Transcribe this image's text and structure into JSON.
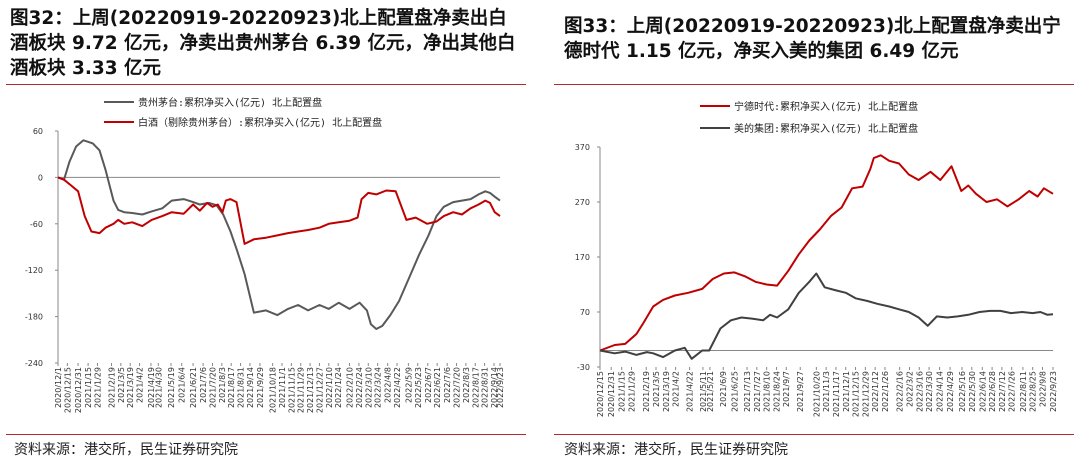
{
  "charts": [
    {
      "title": "图32：上周(20220919-20220923)北上配置盘净卖出白酒板块 9.72 亿元，净卖出贵州茅台 6.39 亿元，净出其他白酒板块 3.33 亿元",
      "source": "资料来源：港交所，民生证券研究院",
      "colors": {
        "series1": "#595959",
        "series2": "#c00000",
        "rule": "#b5292d"
      },
      "chart_data": {
        "type": "line",
        "ylim": [
          -240,
          60
        ],
        "yticks": [
          "60",
          "0",
          "-60",
          "-120",
          "-180",
          "-240"
        ],
        "xlim": [
          "2020-12-01",
          "2022-09-23"
        ],
        "xticks": [
          "2020/12/1",
          "2020/12/15",
          "2020/12/31",
          "2021/1/15",
          "2021/1/29",
          "2021/2/19",
          "2021/3/5",
          "2021/3/19",
          "2021/4/2",
          "2021/4/19",
          "2021/4/30",
          "2021/5/19",
          "2021/6/4",
          "2021/6/21",
          "2021/7/6",
          "2021/7/20",
          "2021/8/3",
          "2021/8/17",
          "2021/8/31",
          "2021/9/14",
          "2021/9/29",
          "2021/10/18",
          "2021/11/1",
          "2021/11/15",
          "2021/11/29",
          "2021/12/13",
          "2021/12/27",
          "2022/1/10",
          "2022/1/24",
          "2022/2/10",
          "2022/2/24",
          "2022/3/10",
          "2022/3/24",
          "2022/4/8",
          "2022/4/22",
          "2022/5/9",
          "2022/5/23",
          "2022/6/7",
          "2022/6/21",
          "2022/7/6",
          "2022/7/20",
          "2022/8/3",
          "2022/8/17",
          "2022/8/31",
          "2022/9/14",
          "2022/9/23"
        ],
        "series": [
          {
            "name": "贵州茅台:累积净买入(亿元) 北上配置盘",
            "x": [
              "2020-12-01",
              "2020-12-10",
              "2020-12-18",
              "2020-12-28",
              "2021-01-08",
              "2021-01-15",
              "2021-01-22",
              "2021-02-01",
              "2021-02-10",
              "2021-02-22",
              "2021-03-01",
              "2021-03-10",
              "2021-03-22",
              "2021-04-06",
              "2021-04-20",
              "2021-05-06",
              "2021-05-20",
              "2021-06-07",
              "2021-06-21",
              "2021-07-01",
              "2021-07-15",
              "2021-07-26",
              "2021-08-05",
              "2021-08-16",
              "2021-08-26",
              "2021-09-06",
              "2021-09-20",
              "2021-10-08",
              "2021-10-25",
              "2021-11-10",
              "2021-11-25",
              "2021-12-10",
              "2021-12-27",
              "2022-01-10",
              "2022-01-25",
              "2022-02-10",
              "2022-02-25",
              "2022-03-08",
              "2022-03-14",
              "2022-03-22",
              "2022-03-31",
              "2022-04-12",
              "2022-04-25",
              "2022-05-10",
              "2022-05-25",
              "2022-06-08",
              "2022-06-20",
              "2022-07-01",
              "2022-07-15",
              "2022-07-28",
              "2022-08-10",
              "2022-08-22",
              "2022-09-01",
              "2022-09-08",
              "2022-09-15",
              "2022-09-23"
            ],
            "values": [
              0,
              -3,
              20,
              40,
              48,
              46,
              44,
              35,
              10,
              -30,
              -42,
              -45,
              -46,
              -48,
              -44,
              -40,
              -30,
              -28,
              -32,
              -35,
              -33,
              -36,
              -48,
              -70,
              -95,
              -125,
              -175,
              -172,
              -178,
              -170,
              -165,
              -172,
              -165,
              -170,
              -162,
              -170,
              -162,
              -172,
              -190,
              -196,
              -192,
              -178,
              -160,
              -130,
              -100,
              -75,
              -50,
              -38,
              -32,
              -30,
              -28,
              -22,
              -18,
              -20,
              -25,
              -30
            ]
          },
          {
            "name": "白酒（剔除贵州茅台）:累积净买入(亿元) 北上配置盘",
            "x": [
              "2020-12-01",
              "2020-12-10",
              "2020-12-20",
              "2020-12-31",
              "2021-01-10",
              "2021-01-20",
              "2021-02-01",
              "2021-02-10",
              "2021-02-22",
              "2021-03-01",
              "2021-03-10",
              "2021-03-22",
              "2021-04-06",
              "2021-04-20",
              "2021-05-06",
              "2021-05-20",
              "2021-06-07",
              "2021-06-21",
              "2021-07-01",
              "2021-07-12",
              "2021-07-20",
              "2021-07-28",
              "2021-08-04",
              "2021-08-09",
              "2021-08-16",
              "2021-08-25",
              "2021-09-06",
              "2021-09-20",
              "2021-10-08",
              "2021-10-25",
              "2021-11-10",
              "2021-11-25",
              "2021-12-10",
              "2021-12-27",
              "2022-01-10",
              "2022-01-25",
              "2022-02-10",
              "2022-02-22",
              "2022-02-28",
              "2022-03-10",
              "2022-03-22",
              "2022-04-06",
              "2022-04-20",
              "2022-05-06",
              "2022-05-20",
              "2022-06-06",
              "2022-06-20",
              "2022-07-01",
              "2022-07-15",
              "2022-07-28",
              "2022-08-10",
              "2022-08-22",
              "2022-09-01",
              "2022-09-08",
              "2022-09-15",
              "2022-09-23"
            ],
            "values": [
              0,
              -3,
              -10,
              -18,
              -50,
              -70,
              -72,
              -65,
              -60,
              -55,
              -60,
              -58,
              -63,
              -55,
              -50,
              -45,
              -47,
              -35,
              -43,
              -33,
              -38,
              -35,
              -45,
              -30,
              -28,
              -32,
              -86,
              -80,
              -78,
              -75,
              -72,
              -70,
              -68,
              -65,
              -60,
              -58,
              -56,
              -52,
              -28,
              -20,
              -22,
              -17,
              -18,
              -55,
              -52,
              -60,
              -57,
              -50,
              -45,
              -48,
              -40,
              -35,
              -30,
              -33,
              -45,
              -50
            ]
          }
        ]
      }
    },
    {
      "title": "图33：上周(20220919-20220923)北上配置盘净卖出宁德时代 1.15 亿元，净买入美的集团 6.49 亿元",
      "source": "资料来源：港交所，民生证券研究院",
      "colors": {
        "series1": "#c00000",
        "series2": "#404040",
        "rule": "#b5292d"
      },
      "chart_data": {
        "type": "line",
        "ylim": [
          -30,
          370
        ],
        "yticks": [
          "370",
          "270",
          "170",
          "70",
          "-30"
        ],
        "xlim": [
          "2020-12-15",
          "2022-09-23"
        ],
        "xticks": [
          "2020/12/15",
          "2020/12/31",
          "2021/1/15",
          "2021/1/29",
          "2021/2/19",
          "2021/3/5",
          "2021/3/19",
          "2021/4/2",
          "2021/4/22",
          "2021/5/11",
          "2021/5/21",
          "2021/6/9",
          "2021/6/25",
          "2021/7/13",
          "2021/7/27",
          "2021/8/10",
          "2021/8/24",
          "2021/9/7",
          "2021/9/27",
          "2021/10/20",
          "2021/11/3",
          "2021/11/17",
          "2021/12/1",
          "2021/12/15",
          "2021/12/29",
          "2022/1/12",
          "2022/1/26",
          "2022/2/16",
          "2022/3/2",
          "2022/3/16",
          "2022/3/30",
          "2022/4/14",
          "2022/4/29",
          "2022/5/16",
          "2022/5/30",
          "2022/6/14",
          "2022/6/28",
          "2022/7/12",
          "2022/7/26",
          "2022/8/11",
          "2022/8/25",
          "2022/9/8",
          "2022/9/23"
        ],
        "series": [
          {
            "name": "宁德时代:累积净买入(亿元) 北上配置盘",
            "x": [
              "2020-12-15",
              "2021-01-05",
              "2021-01-20",
              "2021-02-05",
              "2021-02-15",
              "2021-03-01",
              "2021-03-15",
              "2021-04-01",
              "2021-04-20",
              "2021-05-10",
              "2021-05-25",
              "2021-06-10",
              "2021-06-25",
              "2021-07-10",
              "2021-07-25",
              "2021-08-10",
              "2021-08-25",
              "2021-09-10",
              "2021-09-25",
              "2021-10-10",
              "2021-10-25",
              "2021-11-10",
              "2021-11-25",
              "2021-12-10",
              "2021-12-25",
              "2022-01-05",
              "2022-01-10",
              "2022-01-20",
              "2022-02-01",
              "2022-02-15",
              "2022-03-01",
              "2022-03-15",
              "2022-04-01",
              "2022-04-15",
              "2022-05-01",
              "2022-05-15",
              "2022-05-25",
              "2022-06-05",
              "2022-06-20",
              "2022-07-05",
              "2022-07-20",
              "2022-08-05",
              "2022-08-20",
              "2022-09-01",
              "2022-09-10",
              "2022-09-23"
            ],
            "values": [
              0,
              10,
              12,
              30,
              50,
              80,
              92,
              100,
              105,
              112,
              130,
              140,
              142,
              135,
              125,
              120,
              118,
              145,
              175,
              200,
              220,
              245,
              260,
              295,
              298,
              330,
              350,
              355,
              345,
              340,
              320,
              310,
              325,
              310,
              335,
              290,
              300,
              285,
              270,
              275,
              262,
              275,
              290,
              280,
              295,
              285
            ]
          },
          {
            "name": "美的集团:累积净买入(亿元) 北上配置盘",
            "x": [
              "2020-12-15",
              "2021-01-05",
              "2021-01-20",
              "2021-02-05",
              "2021-02-20",
              "2021-03-01",
              "2021-03-15",
              "2021-04-01",
              "2021-04-15",
              "2021-04-25",
              "2021-05-10",
              "2021-05-20",
              "2021-06-05",
              "2021-06-20",
              "2021-07-05",
              "2021-07-20",
              "2021-08-05",
              "2021-08-15",
              "2021-08-25",
              "2021-09-10",
              "2021-09-25",
              "2021-10-10",
              "2021-10-20",
              "2021-11-01",
              "2021-11-15",
              "2021-12-01",
              "2021-12-15",
              "2022-01-01",
              "2022-01-15",
              "2022-02-01",
              "2022-02-15",
              "2022-03-01",
              "2022-03-15",
              "2022-03-28",
              "2022-04-10",
              "2022-04-25",
              "2022-05-10",
              "2022-05-25",
              "2022-06-10",
              "2022-06-25",
              "2022-07-10",
              "2022-07-25",
              "2022-08-10",
              "2022-08-25",
              "2022-09-05",
              "2022-09-15",
              "2022-09-23"
            ],
            "values": [
              0,
              -5,
              -2,
              -8,
              -3,
              -5,
              -12,
              0,
              5,
              -15,
              0,
              0,
              40,
              55,
              60,
              58,
              55,
              65,
              60,
              75,
              105,
              125,
              140,
              115,
              110,
              105,
              95,
              90,
              85,
              80,
              75,
              70,
              60,
              45,
              62,
              60,
              62,
              65,
              70,
              72,
              72,
              68,
              70,
              68,
              70,
              65,
              66
            ]
          }
        ]
      }
    }
  ]
}
